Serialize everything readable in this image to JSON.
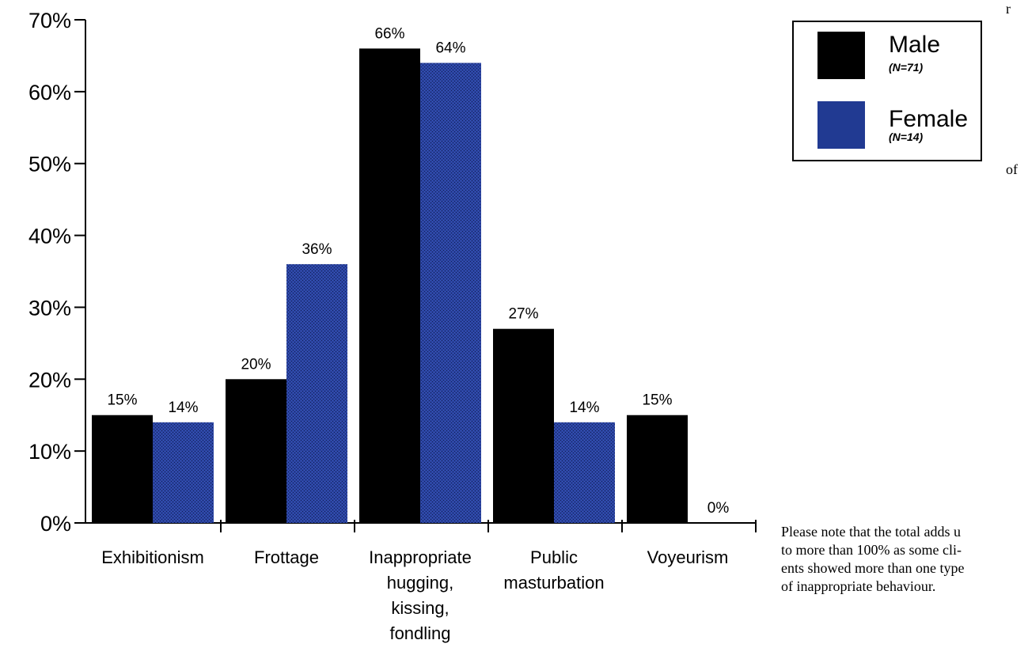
{
  "chart_data": {
    "type": "bar",
    "categories": [
      [
        "Exhibitionism"
      ],
      [
        "Frottage"
      ],
      [
        "Inappropriate",
        "hugging,",
        "kissing,",
        "fondling"
      ],
      [
        "Public",
        "masturbation"
      ],
      [
        "Voyeurism"
      ]
    ],
    "series": [
      {
        "name": "Male",
        "n_label": "(N=71)",
        "values": [
          15,
          20,
          66,
          27,
          15
        ],
        "color": "#000000"
      },
      {
        "name": "Female",
        "n_label": "(N=14)",
        "values": [
          14,
          36,
          64,
          14,
          0
        ],
        "color": "#213a92"
      }
    ],
    "value_labels": [
      [
        "15%",
        "20%",
        "66%",
        "27%",
        "15%"
      ],
      [
        "14%",
        "36%",
        "64%",
        "14%",
        "0%"
      ]
    ],
    "yticks": [
      "0%",
      "10%",
      "20%",
      "30%",
      "40%",
      "50%",
      "60%",
      "70%"
    ],
    "ylim": [
      0,
      70
    ],
    "title": "",
    "xlabel": "",
    "ylabel": "",
    "grid": false,
    "legend_position": "top-right"
  },
  "fragments": {
    "top_right": "r",
    "right_mid": "of"
  },
  "note": {
    "lines": [
      "Please note that the total adds u",
      "to more than 100% as some cli-",
      "ents showed more than one type",
      "of inappropriate behaviour."
    ]
  }
}
